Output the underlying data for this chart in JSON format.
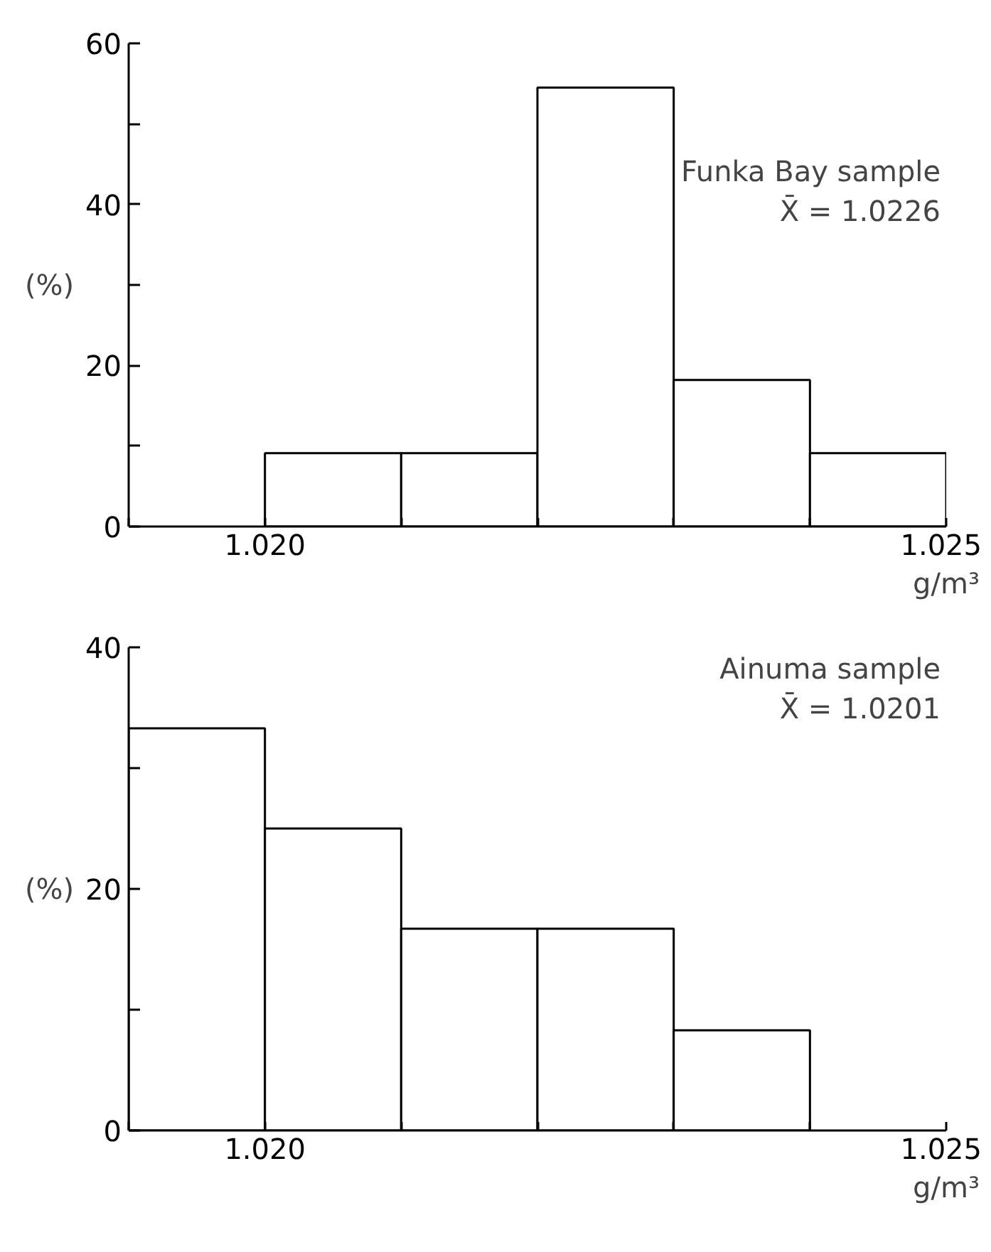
{
  "chart_data": [
    {
      "type": "histogram",
      "ylabel": "(%)",
      "xlabel": "g/m³",
      "annotations": [
        "Funka Bay sample",
        "X̄ = 1.0226"
      ],
      "bins": [
        1.02,
        1.021,
        1.022,
        1.023,
        1.024,
        1.025
      ],
      "values": [
        9.1,
        9.1,
        54.5,
        18.2,
        9.1
      ],
      "xlim": [
        1.019,
        1.025
      ],
      "xticks": [
        {
          "value": 1.019,
          "label": null
        },
        {
          "value": 1.02,
          "label": "1.020"
        },
        {
          "value": 1.021,
          "label": null
        },
        {
          "value": 1.022,
          "label": null
        },
        {
          "value": 1.023,
          "label": null
        },
        {
          "value": 1.024,
          "label": null
        },
        1.025
      ],
      "ylim": [
        0,
        60
      ],
      "yticks": [
        0,
        {
          "value": 10,
          "label": null
        },
        20,
        {
          "value": 30,
          "label": null
        },
        40,
        {
          "value": 50,
          "label": null
        },
        60
      ],
      "grid": false
    },
    {
      "type": "histogram",
      "ylabel": "(%)",
      "xlabel": "g/m³",
      "annotations": [
        "Ainuma sample",
        "X̄ = 1.0201"
      ],
      "bins": [
        1.019,
        1.02,
        1.021,
        1.022,
        1.023,
        1.024
      ],
      "values": [
        33.3,
        25.0,
        16.7,
        16.7,
        8.3
      ],
      "xlim": [
        1.019,
        1.025
      ],
      "xticks": [
        {
          "value": 1.019,
          "label": null
        },
        {
          "value": 1.02,
          "label": "1.020"
        },
        {
          "value": 1.021,
          "label": null
        },
        {
          "value": 1.022,
          "label": null
        },
        {
          "value": 1.023,
          "label": null
        },
        {
          "value": 1.024,
          "label": null
        },
        1.025
      ],
      "ylim": [
        0,
        40
      ],
      "yticks": [
        0,
        {
          "value": 10,
          "label": null
        },
        20,
        {
          "value": 30,
          "label": null
        },
        40
      ],
      "grid": false
    }
  ]
}
